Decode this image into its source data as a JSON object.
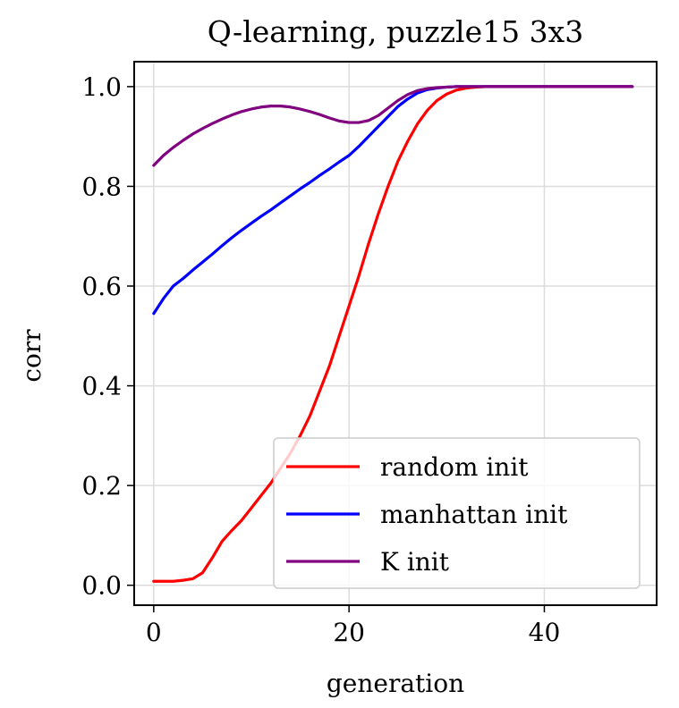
{
  "chart_data": {
    "type": "line",
    "title": "Q-learning, puzzle15 3x3",
    "xlabel": "generation",
    "ylabel": "corr",
    "xlim": [
      -2,
      51.5
    ],
    "ylim": [
      -0.04,
      1.05
    ],
    "xticks": [
      0,
      20,
      40
    ],
    "yticks": [
      0.0,
      0.2,
      0.4,
      0.6,
      0.8,
      1.0
    ],
    "xtick_labels": [
      "0",
      "20",
      "40"
    ],
    "ytick_labels": [
      "0.0",
      "0.2",
      "0.4",
      "0.6",
      "0.8",
      "1.0"
    ],
    "grid": true,
    "legend_position": "lower right",
    "series": [
      {
        "name": "random init",
        "color": "#ff0000",
        "x": [
          0,
          1,
          2,
          3,
          4,
          5,
          6,
          7,
          8,
          9,
          10,
          11,
          12,
          13,
          14,
          15,
          16,
          17,
          18,
          19,
          20,
          21,
          22,
          23,
          24,
          25,
          26,
          27,
          28,
          29,
          30,
          31,
          32,
          33,
          34,
          35,
          36,
          37,
          38,
          39,
          40,
          41,
          42,
          43,
          44,
          45,
          46,
          47,
          48,
          49
        ],
        "y": [
          0.008,
          0.008,
          0.008,
          0.01,
          0.013,
          0.025,
          0.055,
          0.088,
          0.11,
          0.13,
          0.155,
          0.18,
          0.205,
          0.235,
          0.265,
          0.3,
          0.34,
          0.39,
          0.44,
          0.5,
          0.56,
          0.62,
          0.685,
          0.745,
          0.8,
          0.85,
          0.89,
          0.925,
          0.952,
          0.972,
          0.985,
          0.993,
          0.997,
          0.999,
          1.0,
          1.0,
          1.0,
          1.0,
          1.0,
          1.0,
          1.0,
          1.0,
          1.0,
          1.0,
          1.0,
          1.0,
          1.0,
          1.0,
          1.0,
          1.0
        ]
      },
      {
        "name": "manhattan init",
        "color": "#0000ff",
        "x": [
          0,
          1,
          2,
          3,
          4,
          5,
          6,
          7,
          8,
          9,
          10,
          11,
          12,
          13,
          14,
          15,
          16,
          17,
          18,
          19,
          20,
          21,
          22,
          23,
          24,
          25,
          26,
          27,
          28,
          29,
          30,
          31,
          32,
          33,
          34,
          35,
          36,
          37,
          38,
          39,
          40,
          41,
          42,
          43,
          44,
          45,
          46,
          47,
          48,
          49
        ],
        "y": [
          0.545,
          0.575,
          0.6,
          0.615,
          0.632,
          0.648,
          0.664,
          0.681,
          0.697,
          0.712,
          0.726,
          0.74,
          0.753,
          0.767,
          0.781,
          0.795,
          0.808,
          0.822,
          0.835,
          0.849,
          0.862,
          0.88,
          0.9,
          0.92,
          0.94,
          0.96,
          0.975,
          0.987,
          0.994,
          0.997,
          0.999,
          1.0,
          1.0,
          1.0,
          1.0,
          1.0,
          1.0,
          1.0,
          1.0,
          1.0,
          1.0,
          1.0,
          1.0,
          1.0,
          1.0,
          1.0,
          1.0,
          1.0,
          1.0,
          1.0
        ]
      },
      {
        "name": "K init",
        "color": "#800080",
        "x": [
          0,
          1,
          2,
          3,
          4,
          5,
          6,
          7,
          8,
          9,
          10,
          11,
          12,
          13,
          14,
          15,
          16,
          17,
          18,
          19,
          20,
          21,
          22,
          23,
          24,
          25,
          26,
          27,
          28,
          29,
          30,
          31,
          32,
          33,
          34,
          35,
          36,
          37,
          38,
          39,
          40,
          41,
          42,
          43,
          44,
          45,
          46,
          47,
          48,
          49
        ],
        "y": [
          0.842,
          0.862,
          0.878,
          0.892,
          0.905,
          0.916,
          0.926,
          0.935,
          0.943,
          0.95,
          0.955,
          0.959,
          0.961,
          0.961,
          0.959,
          0.955,
          0.95,
          0.944,
          0.937,
          0.931,
          0.928,
          0.928,
          0.932,
          0.942,
          0.957,
          0.972,
          0.984,
          0.992,
          0.996,
          0.998,
          0.999,
          1.0,
          1.0,
          1.0,
          1.0,
          1.0,
          1.0,
          1.0,
          1.0,
          1.0,
          1.0,
          1.0,
          1.0,
          1.0,
          1.0,
          1.0,
          1.0,
          1.0,
          1.0,
          1.0
        ]
      }
    ]
  }
}
